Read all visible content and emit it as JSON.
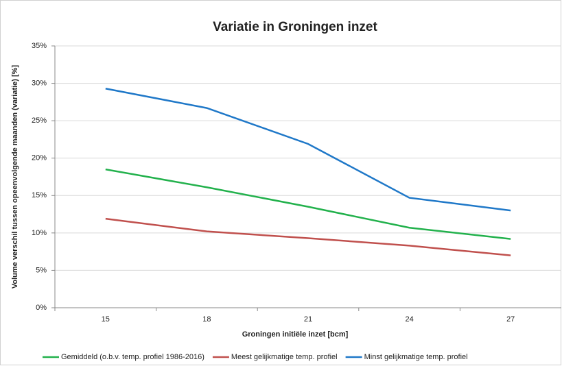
{
  "chart_data": {
    "type": "line",
    "title": "Variatie in Groningen inzet",
    "x_label": "Groningen initiële inzet [bcm]",
    "y_label": "Volume verschil tussen opeenvolgende maanden (variatie) [%]",
    "categories": [
      "15",
      "18",
      "21",
      "24",
      "27"
    ],
    "series": [
      {
        "name": "Gemiddeld (o.b.v. temp. profiel 1986-2016)",
        "color": "#22b14c",
        "values": [
          18.5,
          16.1,
          13.5,
          10.7,
          9.2
        ]
      },
      {
        "name": "Meest gelijkmatige temp. profiel",
        "color": "#c0504d",
        "values": [
          11.9,
          10.2,
          9.3,
          8.3,
          7.0
        ]
      },
      {
        "name": "Minst gelijkmatige temp. profiel",
        "color": "#1f78c8",
        "values": [
          29.3,
          26.7,
          21.9,
          14.7,
          13.0
        ]
      }
    ],
    "ylim": [
      0,
      35
    ],
    "yticks": [
      {
        "value": 0,
        "label": "0%"
      },
      {
        "value": 5,
        "label": "5%"
      },
      {
        "value": 10,
        "label": "10%"
      },
      {
        "value": 15,
        "label": "15%"
      },
      {
        "value": 20,
        "label": "20%"
      },
      {
        "value": 25,
        "label": "25%"
      },
      {
        "value": 30,
        "label": "30%"
      },
      {
        "value": 35,
        "label": "35%"
      }
    ],
    "grid": true,
    "legend": "bottom"
  }
}
